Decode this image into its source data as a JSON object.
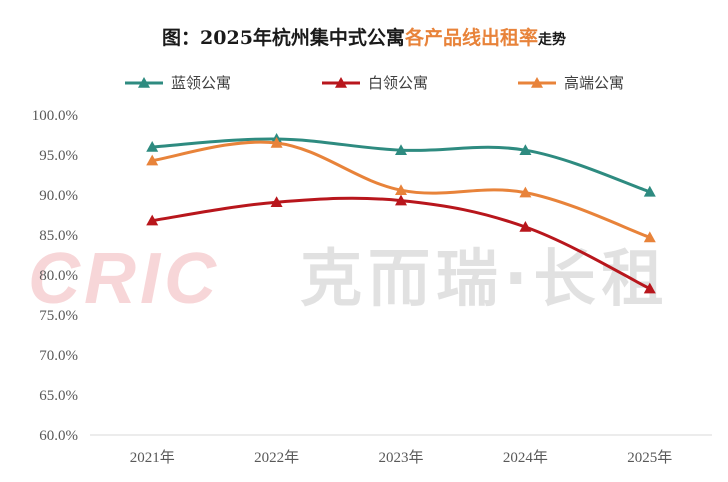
{
  "chart_data": {
    "type": "line",
    "title_parts": [
      "图：2025年杭州集中式公寓",
      "各产品线出租率",
      "走势"
    ],
    "title_colors": [
      "#1a1a1a",
      "#e8833a",
      "#1a1a1a"
    ],
    "categories": [
      "2021年",
      "2022年",
      "2023年",
      "2024年",
      "2025年"
    ],
    "ylim": [
      60,
      100
    ],
    "ytick_step": 5,
    "ytick_labels": [
      "100.0%",
      "95.0%",
      "90.0%",
      "85.0%",
      "80.0%",
      "75.0%",
      "70.0%",
      "65.0%",
      "60.0%"
    ],
    "series": [
      {
        "name": "蓝领公寓",
        "color": "#2e8b80",
        "values": [
          96.0,
          97.0,
          95.6,
          95.6,
          90.4
        ]
      },
      {
        "name": "白领公寓",
        "color": "#b8161c",
        "values": [
          86.8,
          89.1,
          89.3,
          86.0,
          78.3
        ]
      },
      {
        "name": "高端公寓",
        "color": "#e8833a",
        "values": [
          94.3,
          96.5,
          90.6,
          90.3,
          84.7
        ]
      }
    ],
    "legend_position": "top",
    "grid": false,
    "watermark": {
      "logo": "CRIC",
      "text": "克而瑞·长租"
    }
  }
}
